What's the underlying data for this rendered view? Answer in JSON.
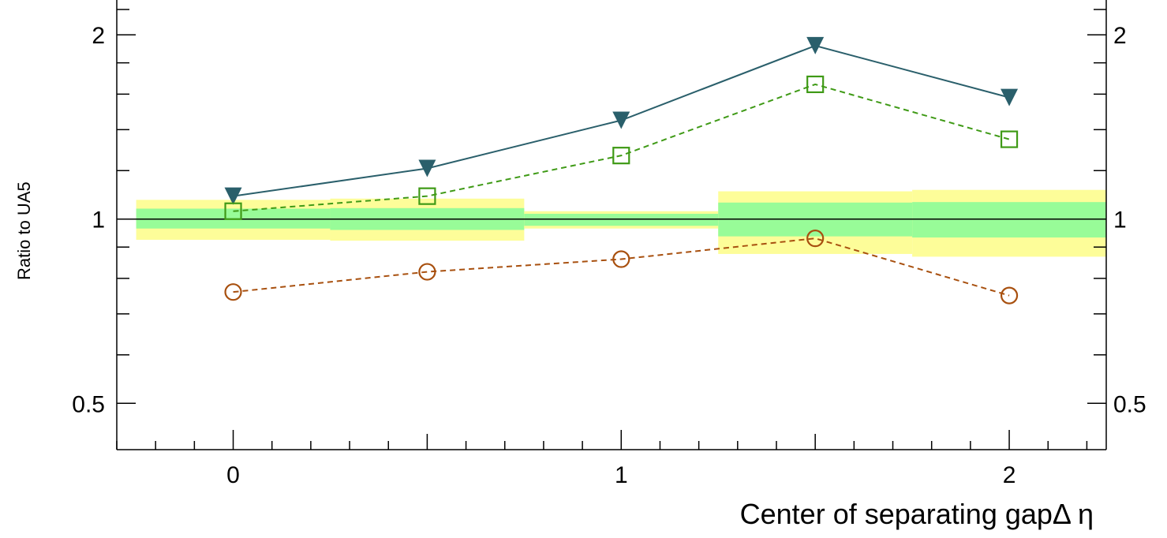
{
  "chart_data": {
    "type": "line",
    "title": "",
    "xlabel": "Center of separating gapΔ η",
    "ylabel": "Ratio to UA5",
    "xlim": [
      -0.3,
      2.25
    ],
    "ylim": [
      0.42,
      2.28
    ],
    "y_scale": "log",
    "x_ticks": [
      0,
      1,
      2
    ],
    "x_tick_labels": [
      "0",
      "1",
      "2"
    ],
    "y_ticks": [
      0.5,
      1,
      2
    ],
    "y_tick_labels": [
      "0.5",
      "1",
      "2"
    ],
    "reference_line": 1.0,
    "uncertainty_bands": [
      {
        "x0": -0.25,
        "x1": 0.25,
        "inner": [
          0.965,
          1.04
        ],
        "outer": [
          0.925,
          1.075
        ]
      },
      {
        "x0": 0.25,
        "x1": 0.75,
        "inner": [
          0.96,
          1.042
        ],
        "outer": [
          0.922,
          1.08
        ]
      },
      {
        "x0": 0.75,
        "x1": 1.25,
        "inner": [
          0.975,
          1.02
        ],
        "outer": [
          0.965,
          1.03
        ]
      },
      {
        "x0": 1.25,
        "x1": 1.75,
        "inner": [
          0.937,
          1.064
        ],
        "outer": [
          0.877,
          1.11
        ]
      },
      {
        "x0": 1.75,
        "x1": 2.25,
        "inner": [
          0.933,
          1.066
        ],
        "outer": [
          0.868,
          1.116
        ]
      }
    ],
    "series": [
      {
        "x": [
          0,
          0.5,
          1,
          1.5,
          2
        ],
        "values": [
          1.09,
          1.21,
          1.45,
          1.92,
          1.58
        ],
        "color": "#2a5f6b",
        "marker": "triangle-down",
        "dash": "solid"
      },
      {
        "x": [
          0,
          0.5,
          1,
          1.5,
          2
        ],
        "values": [
          1.03,
          1.09,
          1.27,
          1.66,
          1.35
        ],
        "color": "#3f9a16",
        "marker": "square-open",
        "dash": "dashed"
      },
      {
        "x": [
          0,
          0.5,
          1,
          1.5,
          2
        ],
        "values": [
          0.76,
          0.82,
          0.86,
          0.93,
          0.75
        ],
        "color": "#a8500f",
        "marker": "circle-open",
        "dash": "dashed"
      }
    ]
  },
  "colors": {
    "band_outer": "#fdfd99",
    "band_inner": "#98fc98",
    "axis": "#000000"
  }
}
